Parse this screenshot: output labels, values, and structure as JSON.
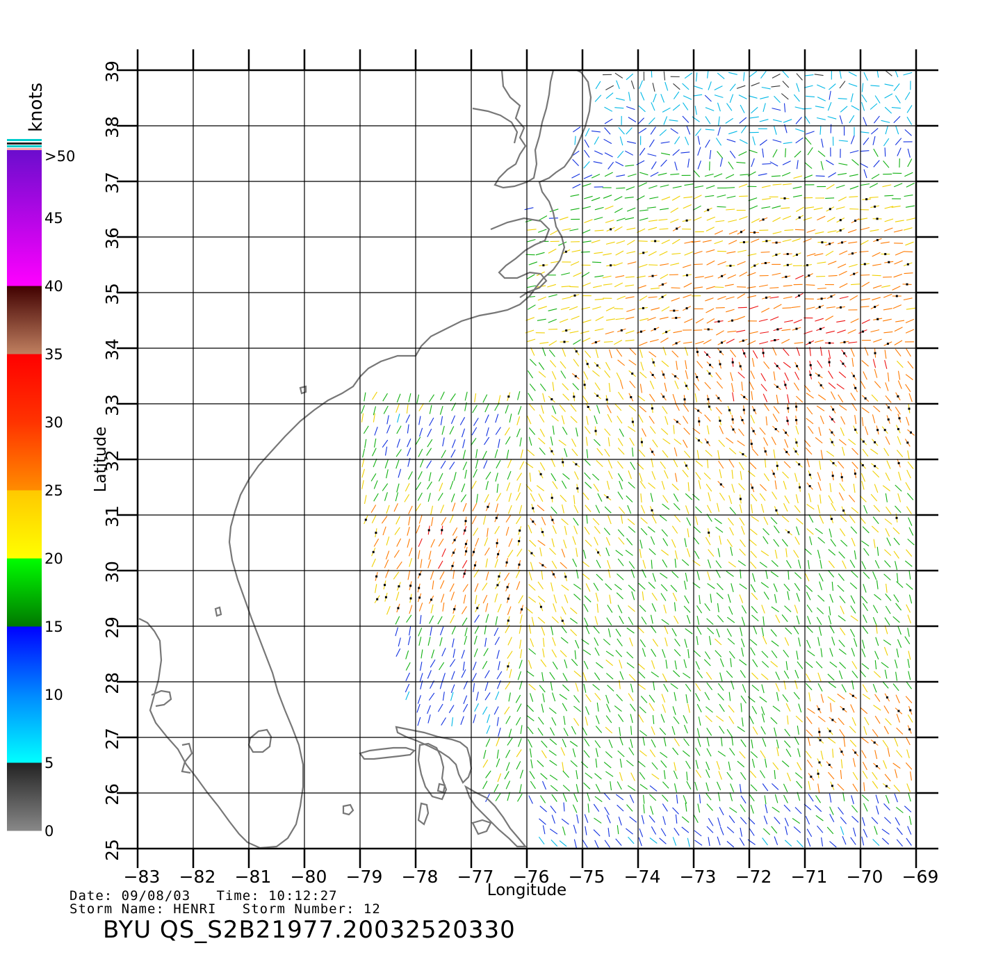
{
  "map": {
    "lon_ticks": [
      -83,
      -82,
      -81,
      -80,
      -79,
      -78,
      -77,
      -76,
      -75,
      -74,
      -73,
      -72,
      -71,
      -70,
      -69
    ],
    "lat_ticks": [
      25,
      26,
      27,
      28,
      29,
      30,
      31,
      32,
      33,
      34,
      35,
      36,
      37,
      38,
      39
    ],
    "lon_range": [
      -83,
      -69
    ],
    "lat_range": [
      25,
      39
    ],
    "xlabel": "Longitude",
    "ylabel": "Latitude",
    "grid": true,
    "coastline_color": "#777777"
  },
  "legend": {
    "title": "knots",
    "levels": [
      {
        "label": "0",
        "value": 0
      },
      {
        "label": "5",
        "value": 5
      },
      {
        "label": "10",
        "value": 10
      },
      {
        "label": "15",
        "value": 15
      },
      {
        "label": "20",
        "value": 20
      },
      {
        "label": "25",
        "value": 25
      },
      {
        "label": "30",
        "value": 30
      },
      {
        "label": "35",
        "value": 35
      },
      {
        "label": "40",
        "value": 40
      },
      {
        "label": "45",
        "value": 45
      },
      {
        "label": ">50",
        "value": 50
      }
    ],
    "color_bands": [
      {
        "range": [
          0,
          5
        ],
        "from": "#888888",
        "to": "#222222"
      },
      {
        "range": [
          5,
          10
        ],
        "from": "#00ffff",
        "to": "#0088ff"
      },
      {
        "range": [
          10,
          15
        ],
        "from": "#0088ff",
        "to": "#0000ff"
      },
      {
        "range": [
          15,
          20
        ],
        "from": "#007700",
        "to": "#00ff00"
      },
      {
        "range": [
          20,
          25
        ],
        "from": "#ffff00",
        "to": "#ffc800"
      },
      {
        "range": [
          25,
          30
        ],
        "from": "#ff8c00",
        "to": "#ff3300"
      },
      {
        "range": [
          30,
          35
        ],
        "from": "#ff3300",
        "to": "#ff0000"
      },
      {
        "range": [
          35,
          40
        ],
        "from": "#c08060",
        "to": "#400000"
      },
      {
        "range": [
          40,
          50
        ],
        "from": "#ff00ff",
        "to": "#6a0dcd"
      }
    ]
  },
  "footer": {
    "date_line": "Date: 09/08/03   Time: 10:12:27",
    "storm_line": "Storm Name: HENRI   Storm Number: 12",
    "product_id": "BYU QS_S2B21977.20032520330"
  }
}
